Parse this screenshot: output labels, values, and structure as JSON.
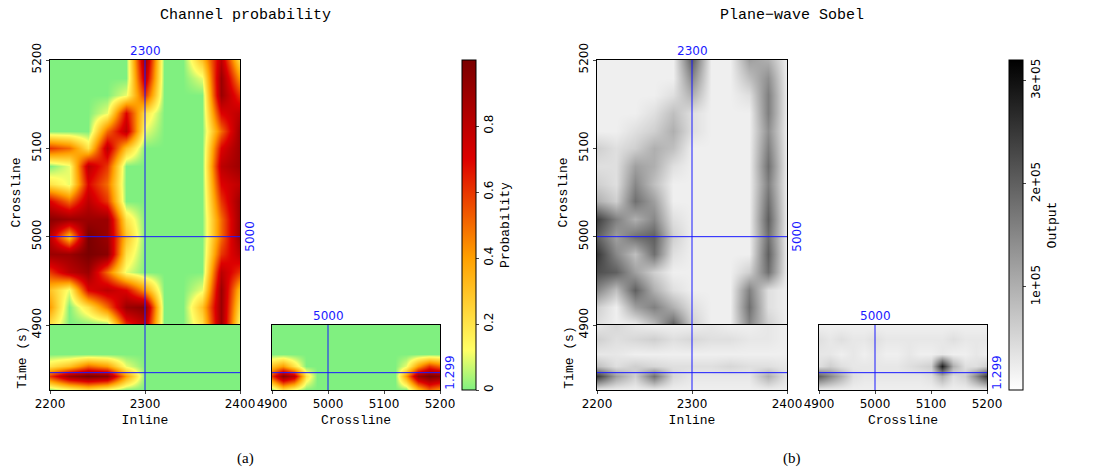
{
  "chart_data": [
    {
      "type": "heatmap",
      "title": "Channel probability",
      "caption": "(a)",
      "colorbar": {
        "label": "Probability",
        "lim": [
          0,
          1
        ],
        "ticks": [
          0,
          0.2,
          0.4,
          0.6,
          0.8
        ]
      },
      "crosshair": {
        "inline": 2300,
        "crossline": 5000,
        "time": 1.299
      },
      "axes": {
        "inline": {
          "label": "Inline",
          "lim": [
            2200,
            2400
          ],
          "ticks": [
            2200,
            2300,
            2400
          ]
        },
        "crossline": {
          "label": "Crossline",
          "lim": [
            4900,
            5200
          ],
          "ticks": [
            4900,
            5000,
            5100,
            5200
          ]
        },
        "time": {
          "label": "Time (s)",
          "lim": [
            1.2,
            1.335
          ],
          "ticks": []
        }
      },
      "grid": {
        "inline": [
          2200,
          2220,
          2240,
          2260,
          2280,
          2300,
          2320,
          2340,
          2360,
          2380,
          2400
        ],
        "crossline": [
          4900,
          4920,
          4940,
          4960,
          4980,
          5000,
          5020,
          5040,
          5060,
          5080,
          5100,
          5120,
          5140,
          5160,
          5180,
          5200
        ],
        "time": [
          1.2,
          1.23,
          1.26,
          1.285,
          1.305,
          1.335
        ]
      },
      "slice": [
        [
          0.2,
          0,
          0,
          0,
          0.6,
          0.8,
          0,
          0,
          0.2,
          0.9,
          0.1
        ],
        [
          0.4,
          0,
          0.2,
          0.5,
          0.9,
          0.95,
          0,
          0,
          0.3,
          0.9,
          0.2
        ],
        [
          0.3,
          0.1,
          0.7,
          0.8,
          0.7,
          0.4,
          0,
          0,
          0.1,
          0.9,
          0.3
        ],
        [
          0.6,
          0.8,
          0.9,
          0.5,
          0.1,
          0,
          0,
          0,
          0,
          0.8,
          0.6
        ],
        [
          0.9,
          0.9,
          1,
          0.95,
          0.2,
          0,
          0,
          0,
          0,
          0.6,
          0.8
        ],
        [
          0.8,
          0.3,
          1,
          0.9,
          0.3,
          0,
          0,
          0,
          0,
          0.5,
          0.9
        ],
        [
          0.95,
          0.9,
          0.9,
          0.9,
          0.2,
          0,
          0,
          0,
          0,
          0.5,
          0.9
        ],
        [
          0.7,
          0.5,
          0.8,
          0.6,
          0,
          0,
          0,
          0,
          0,
          0.6,
          0.9
        ],
        [
          0.2,
          0.1,
          0.7,
          0.5,
          0,
          0,
          0,
          0,
          0,
          0.7,
          0.8
        ],
        [
          0,
          0.1,
          0.8,
          0.6,
          0,
          0,
          0,
          0,
          0,
          0.8,
          0.9
        ],
        [
          0.6,
          0.5,
          0.2,
          0.8,
          0.3,
          0,
          0,
          0,
          0,
          0.7,
          0.9
        ],
        [
          0,
          0,
          0,
          0.5,
          0.8,
          0.1,
          0,
          0,
          0,
          0.5,
          0.9
        ],
        [
          0,
          0,
          0,
          0.1,
          0.7,
          0.2,
          0,
          0,
          0,
          0.7,
          0.8
        ],
        [
          0,
          0,
          0,
          0,
          0.1,
          0.6,
          0,
          0,
          0,
          0.9,
          0.6
        ],
        [
          0,
          0,
          0,
          0,
          0,
          0.8,
          0,
          0,
          0.1,
          0.9,
          0.4
        ],
        [
          0,
          0,
          0,
          0,
          0,
          0.9,
          0,
          0,
          0.3,
          0.8,
          0.2
        ]
      ],
      "inline_section": [
        [
          0,
          0,
          0,
          0,
          0,
          0,
          0,
          0,
          0,
          0,
          0
        ],
        [
          0,
          0,
          0,
          0,
          0,
          0,
          0,
          0,
          0,
          0,
          0
        ],
        [
          0,
          0,
          0,
          0,
          0,
          0,
          0,
          0,
          0,
          0,
          0
        ],
        [
          0.2,
          0.3,
          0.5,
          0.4,
          0.1,
          0,
          0,
          0,
          0,
          0,
          0
        ],
        [
          0.6,
          0.9,
          1,
          0.95,
          0.4,
          0,
          0,
          0,
          0,
          0,
          0
        ],
        [
          0,
          0.1,
          0.2,
          0.1,
          0,
          0,
          0,
          0,
          0,
          0,
          0
        ]
      ],
      "crossline_section": [
        [
          0,
          0,
          0,
          0,
          0,
          0,
          0,
          0,
          0,
          0,
          0,
          0,
          0,
          0,
          0,
          0
        ],
        [
          0,
          0,
          0,
          0,
          0,
          0,
          0,
          0,
          0,
          0,
          0,
          0,
          0,
          0,
          0,
          0
        ],
        [
          0,
          0,
          0,
          0,
          0,
          0,
          0,
          0,
          0,
          0,
          0,
          0,
          0,
          0,
          0,
          0
        ],
        [
          0.3,
          0.4,
          0.2,
          0,
          0,
          0,
          0,
          0,
          0,
          0,
          0,
          0,
          0.1,
          0.4,
          0.6,
          0.5
        ],
        [
          0.6,
          0.95,
          0.8,
          0.2,
          0,
          0,
          0,
          0,
          0,
          0,
          0,
          0,
          0.4,
          0.9,
          1,
          0.95
        ],
        [
          0,
          0.2,
          0.1,
          0,
          0,
          0,
          0,
          0,
          0,
          0,
          0,
          0,
          0,
          0.3,
          0.5,
          0.4
        ]
      ]
    },
    {
      "type": "heatmap",
      "title": "Plane−wave Sobel",
      "caption": "(b)",
      "colorbar": {
        "label": "Output",
        "lim": [
          0,
          320000
        ],
        "ticks": [
          {
            "value": 100000,
            "label": "1e+05"
          },
          {
            "value": 200000,
            "label": "2e+05"
          },
          {
            "value": 300000,
            "label": "3e+05"
          }
        ]
      },
      "crosshair": {
        "inline": 2300,
        "crossline": 5000,
        "time": 1.299
      },
      "axes": {
        "inline": {
          "label": "Inline",
          "lim": [
            2200,
            2400
          ],
          "ticks": [
            2200,
            2300,
            2400
          ]
        },
        "crossline": {
          "label": "Crossline",
          "lim": [
            4900,
            5200
          ],
          "ticks": [
            4900,
            5000,
            5100,
            5200
          ]
        },
        "time": {
          "label": "Time (s)",
          "lim": [
            1.2,
            1.335
          ],
          "ticks": []
        }
      },
      "grid": {
        "inline": [
          2200,
          2220,
          2240,
          2260,
          2280,
          2300,
          2320,
          2340,
          2360,
          2380,
          2400
        ],
        "crossline": [
          4900,
          4920,
          4940,
          4960,
          4980,
          5000,
          5020,
          5040,
          5060,
          5080,
          5100,
          5120,
          5140,
          5160,
          5180,
          5200
        ],
        "time": [
          1.2,
          1.23,
          1.26,
          1.285,
          1.305,
          1.335
        ]
      },
      "slice": [
        [
          40000,
          20000,
          20000,
          80000,
          200000,
          60000,
          20000,
          20000,
          150000,
          60000,
          20000
        ],
        [
          60000,
          20000,
          120000,
          160000,
          100000,
          40000,
          20000,
          20000,
          180000,
          40000,
          20000
        ],
        [
          150000,
          80000,
          200000,
          100000,
          40000,
          20000,
          20000,
          20000,
          160000,
          40000,
          20000
        ],
        [
          220000,
          200000,
          120000,
          60000,
          20000,
          20000,
          20000,
          20000,
          60000,
          180000,
          20000
        ],
        [
          250000,
          150000,
          80000,
          180000,
          40000,
          20000,
          20000,
          20000,
          20000,
          200000,
          20000
        ],
        [
          200000,
          120000,
          180000,
          200000,
          60000,
          20000,
          20000,
          20000,
          20000,
          180000,
          20000
        ],
        [
          240000,
          160000,
          100000,
          150000,
          40000,
          20000,
          20000,
          20000,
          20000,
          200000,
          20000
        ],
        [
          100000,
          60000,
          180000,
          120000,
          20000,
          20000,
          20000,
          20000,
          20000,
          180000,
          20000
        ],
        [
          60000,
          40000,
          150000,
          80000,
          20000,
          20000,
          20000,
          20000,
          20000,
          160000,
          20000
        ],
        [
          40000,
          40000,
          120000,
          100000,
          40000,
          20000,
          20000,
          20000,
          20000,
          180000,
          20000
        ],
        [
          60000,
          40000,
          60000,
          100000,
          80000,
          20000,
          20000,
          20000,
          20000,
          160000,
          20000
        ],
        [
          20000,
          20000,
          40000,
          60000,
          100000,
          40000,
          20000,
          20000,
          20000,
          140000,
          20000
        ],
        [
          20000,
          20000,
          20000,
          40000,
          80000,
          40000,
          20000,
          20000,
          20000,
          160000,
          20000
        ],
        [
          20000,
          20000,
          20000,
          20000,
          40000,
          100000,
          20000,
          20000,
          40000,
          160000,
          20000
        ],
        [
          20000,
          20000,
          20000,
          20000,
          20000,
          150000,
          20000,
          20000,
          80000,
          140000,
          20000
        ],
        [
          20000,
          20000,
          20000,
          20000,
          20000,
          200000,
          20000,
          20000,
          120000,
          100000,
          20000
        ]
      ],
      "inline_section": [
        [
          30000,
          50000,
          30000,
          20000,
          20000,
          20000,
          30000,
          20000,
          20000,
          30000,
          20000
        ],
        [
          60000,
          40000,
          50000,
          60000,
          40000,
          50000,
          40000,
          40000,
          30000,
          30000,
          20000
        ],
        [
          30000,
          30000,
          20000,
          20000,
          20000,
          20000,
          20000,
          20000,
          20000,
          20000,
          20000
        ],
        [
          80000,
          40000,
          60000,
          50000,
          40000,
          40000,
          40000,
          50000,
          40000,
          40000,
          30000
        ],
        [
          250000,
          120000,
          60000,
          180000,
          50000,
          30000,
          30000,
          30000,
          30000,
          100000,
          30000
        ],
        [
          20000,
          20000,
          20000,
          20000,
          20000,
          20000,
          20000,
          20000,
          20000,
          20000,
          20000
        ]
      ],
      "crossline_section": [
        [
          20000,
          20000,
          20000,
          20000,
          20000,
          20000,
          20000,
          20000,
          20000,
          20000,
          20000,
          20000,
          20000,
          20000,
          20000,
          20000
        ],
        [
          40000,
          30000,
          40000,
          30000,
          30000,
          40000,
          30000,
          30000,
          30000,
          30000,
          30000,
          30000,
          40000,
          30000,
          30000,
          30000
        ],
        [
          30000,
          30000,
          20000,
          30000,
          20000,
          30000,
          20000,
          20000,
          30000,
          20000,
          20000,
          30000,
          20000,
          20000,
          30000,
          20000
        ],
        [
          40000,
          60000,
          40000,
          30000,
          30000,
          30000,
          30000,
          30000,
          40000,
          50000,
          60000,
          280000,
          100000,
          40000,
          40000,
          60000
        ],
        [
          200000,
          150000,
          100000,
          40000,
          30000,
          30000,
          30000,
          30000,
          30000,
          30000,
          40000,
          100000,
          40000,
          60000,
          150000,
          250000
        ],
        [
          20000,
          20000,
          20000,
          20000,
          20000,
          20000,
          20000,
          20000,
          20000,
          20000,
          20000,
          20000,
          20000,
          20000,
          20000,
          20000
        ]
      ]
    }
  ]
}
